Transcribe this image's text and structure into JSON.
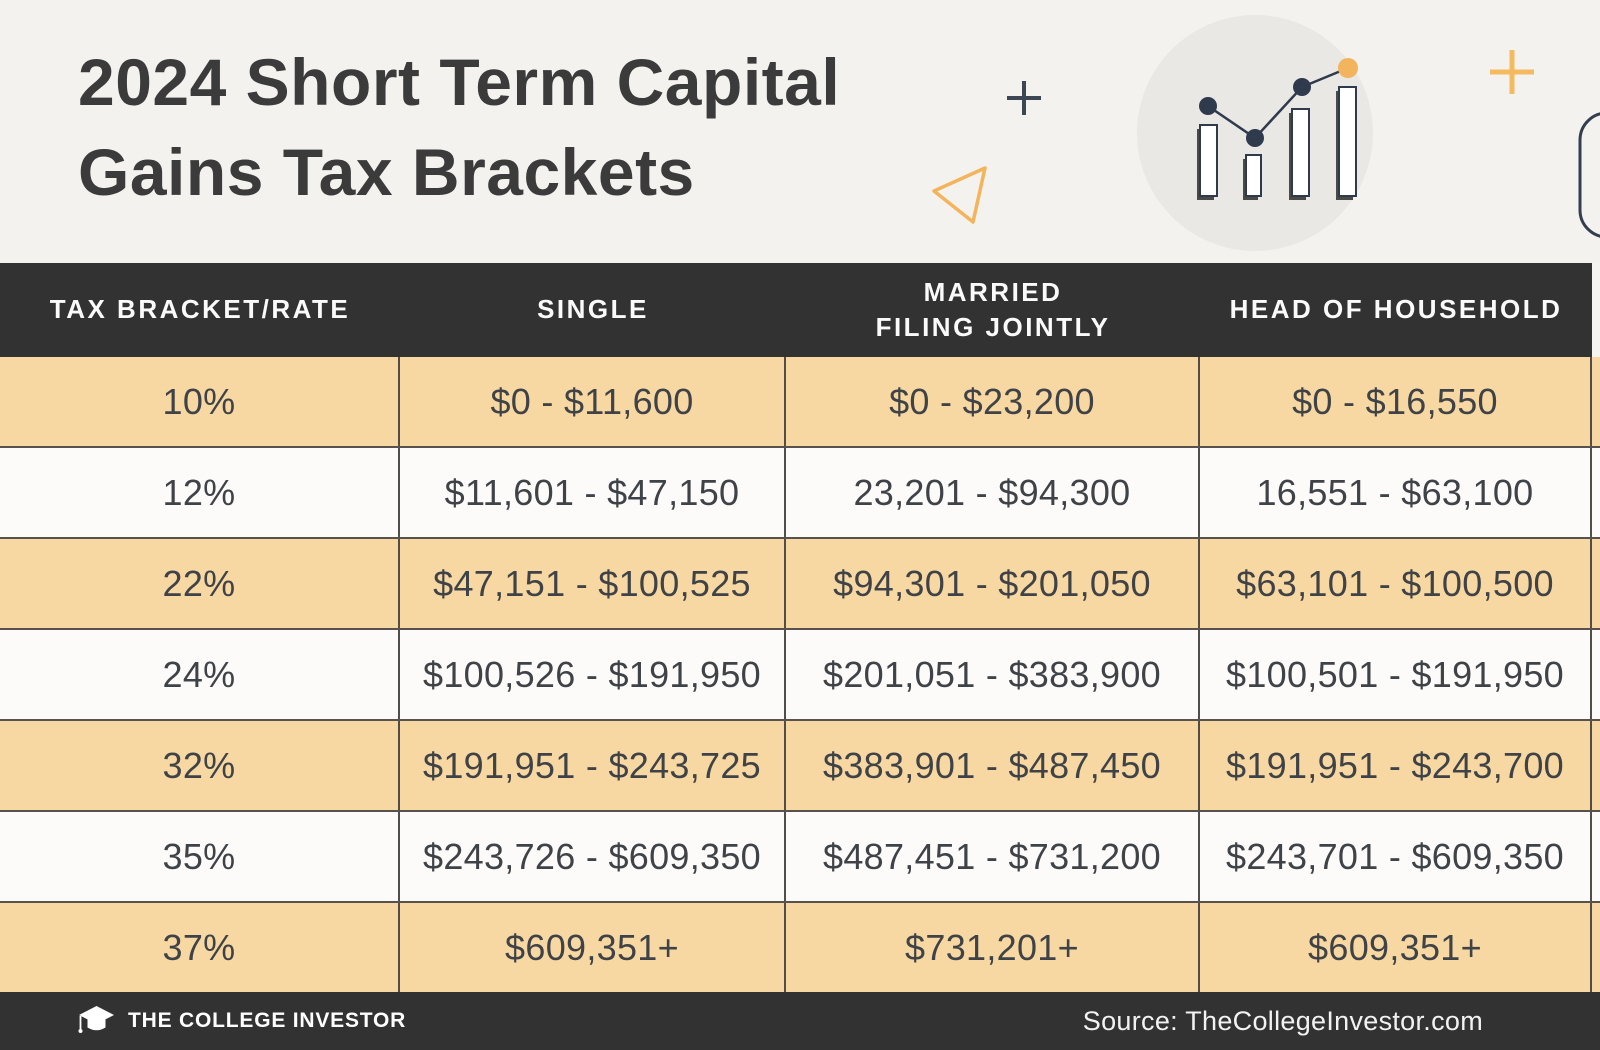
{
  "header": {
    "title_lines": [
      "2024 Short Term Capital",
      "Gains Tax Brackets"
    ]
  },
  "chart_data": {
    "type": "table",
    "title": "2024 Short Term Capital Gains Tax Brackets",
    "columns": [
      {
        "id": "tax-bracket-rate",
        "lines": [
          "TAX BRACKET/RATE"
        ]
      },
      {
        "id": "single",
        "lines": [
          "SINGLE"
        ]
      },
      {
        "id": "married-filing-jointly",
        "lines": [
          "MARRIED",
          "FILING JOINTLY"
        ]
      },
      {
        "id": "head-of-household",
        "lines": [
          "HEAD OF HOUSEHOLD"
        ]
      }
    ],
    "rows": [
      [
        "10%",
        "$0 - $11,600",
        "$0 - $23,200",
        "$0 - $16,550"
      ],
      [
        "12%",
        "$11,601 - $47,150",
        "23,201 - $94,300",
        "16,551 - $63,100"
      ],
      [
        "22%",
        "$47,151 - $100,525",
        "$94,301 - $201,050",
        "$63,101 - $100,500"
      ],
      [
        "24%",
        "$100,526 - $191,950",
        "$201,051 - $383,900",
        "$100,501 - $191,950"
      ],
      [
        "32%",
        "$191,951 - $243,725",
        "$383,901 - $487,450",
        "$191,951 - $243,700"
      ],
      [
        "35%",
        "$243,726 - $609,350",
        "$487,451 - $731,200",
        "$243,701 - $609,350"
      ],
      [
        "37%",
        "$609,351+",
        "$731,201+",
        "$609,351+"
      ]
    ],
    "layout_hints": {
      "stripe_odd_rows": "#f8d8a2",
      "stripe_even_rows": "#fcfbf9",
      "header_background": "#323232"
    }
  },
  "footer": {
    "brand": "THE COLLEGE INVESTOR",
    "source": "Source: TheCollegeInvestor.com"
  },
  "icons": {
    "plus_dark": "plus-icon",
    "plus_amber": "plus-icon",
    "triangle": "triangle-outline-icon",
    "bar_chart": "bar-chart-trend-icon",
    "rounded_rect": "rounded-rect-outline-icon",
    "graduation_cap": "graduation-cap-icon"
  },
  "colors": {
    "background": "#f4f2ef",
    "dark_band": "#323232",
    "row_tan": "#f8d8a2",
    "row_white": "#fcfbf9",
    "title_text": "#3b3b3b",
    "cell_text": "#3f4347",
    "navy_accent": "#2f3a4d",
    "amber_accent": "#f5b95f",
    "circle_gray": "#e9e8e5"
  }
}
